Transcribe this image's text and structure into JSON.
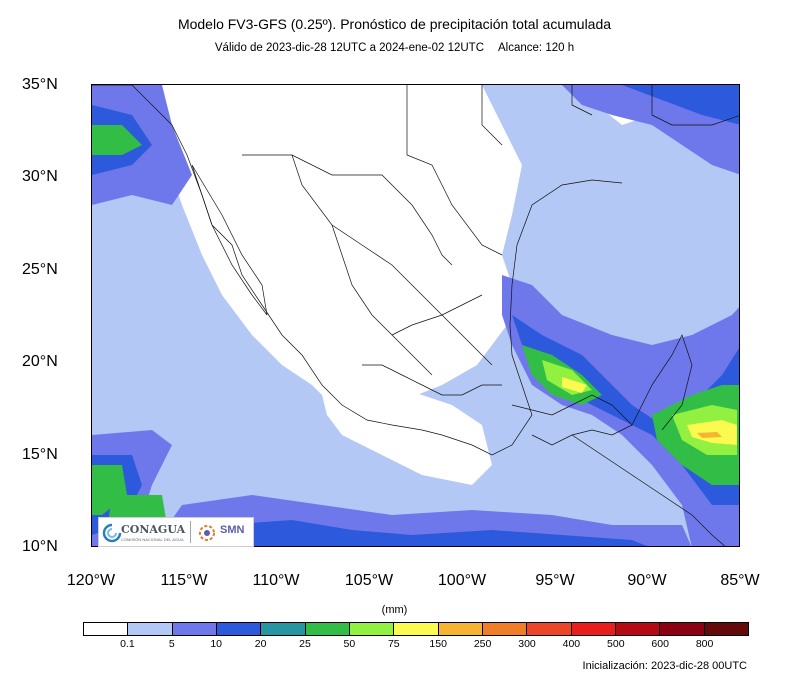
{
  "header": {
    "title": "Modelo FV3-GFS (0.25º). Pronóstico de precipitación total acumulada",
    "valid": "Válido de 2023-dic-28 12UTC a 2024-ene-02 12UTC",
    "range": "Alcance: 120 h"
  },
  "map": {
    "region": "Mexico and surroundings",
    "lat_range": [
      10,
      35
    ],
    "lon_range": [
      -120,
      -85
    ],
    "lat_labels": [
      "35°N",
      "30°N",
      "25°N",
      "20°N",
      "15°N",
      "10°N"
    ],
    "lon_labels": [
      "120°W",
      "115°W",
      "110°W",
      "105°W",
      "100°W",
      "95°W",
      "90°W",
      "85°W"
    ]
  },
  "legend": {
    "units": "(mm)",
    "levels": [
      "0.1",
      "5",
      "10",
      "20",
      "25",
      "50",
      "75",
      "150",
      "250",
      "300",
      "400",
      "500",
      "600",
      "800"
    ],
    "colors": [
      "#ffffff",
      "#b4c8f5",
      "#6e78eb",
      "#2d5adc",
      "#2896a0",
      "#32be46",
      "#91f040",
      "#fafa50",
      "#f5b432",
      "#f07d28",
      "#eb4628",
      "#e61e1e",
      "#b40a14",
      "#8c0014",
      "#640a0a"
    ]
  },
  "footer": {
    "init": "Inicialización: 2023-dic-28 00UTC"
  },
  "logos": {
    "conagua": "CONAGUA",
    "conagua_sub": "COMISIÓN NACIONAL DEL AGUA",
    "smn": "SMN"
  }
}
